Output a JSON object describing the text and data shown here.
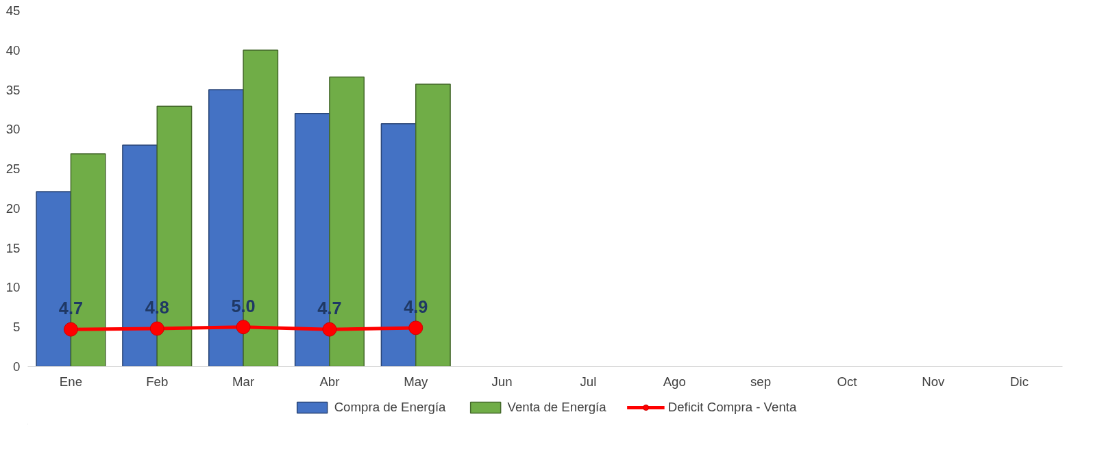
{
  "chart_data": {
    "type": "bar",
    "categories": [
      "Ene",
      "Feb",
      "Mar",
      "Abr",
      "May",
      "Jun",
      "Jul",
      "Ago",
      "sep",
      "Oct",
      "Nov",
      "Dic"
    ],
    "series": [
      {
        "name": "Compra de Energía",
        "color": "#4472c4",
        "values": [
          22.1,
          28.0,
          35.0,
          32.0,
          30.7,
          null,
          null,
          null,
          null,
          null,
          null,
          null
        ]
      },
      {
        "name": "Venta de Energía",
        "color": "#70ad47",
        "values": [
          26.9,
          32.9,
          40.0,
          36.6,
          35.7,
          null,
          null,
          null,
          null,
          null,
          null,
          null
        ]
      },
      {
        "name": "Deficit Compra - Venta",
        "type": "line",
        "color": "#ff0000",
        "marker": "circle",
        "values": [
          4.7,
          4.8,
          5.0,
          4.7,
          4.9,
          null,
          null,
          null,
          null,
          null,
          null,
          null
        ],
        "value_labels": [
          "4.7",
          "4.8",
          "5.0",
          "4.7",
          "4.9",
          null,
          null,
          null,
          null,
          null,
          null,
          null
        ]
      }
    ],
    "ylim": [
      0,
      45
    ],
    "yticks": [
      0,
      5,
      10,
      15,
      20,
      25,
      30,
      35,
      40,
      45
    ],
    "grid": false,
    "legend": "bottom"
  }
}
